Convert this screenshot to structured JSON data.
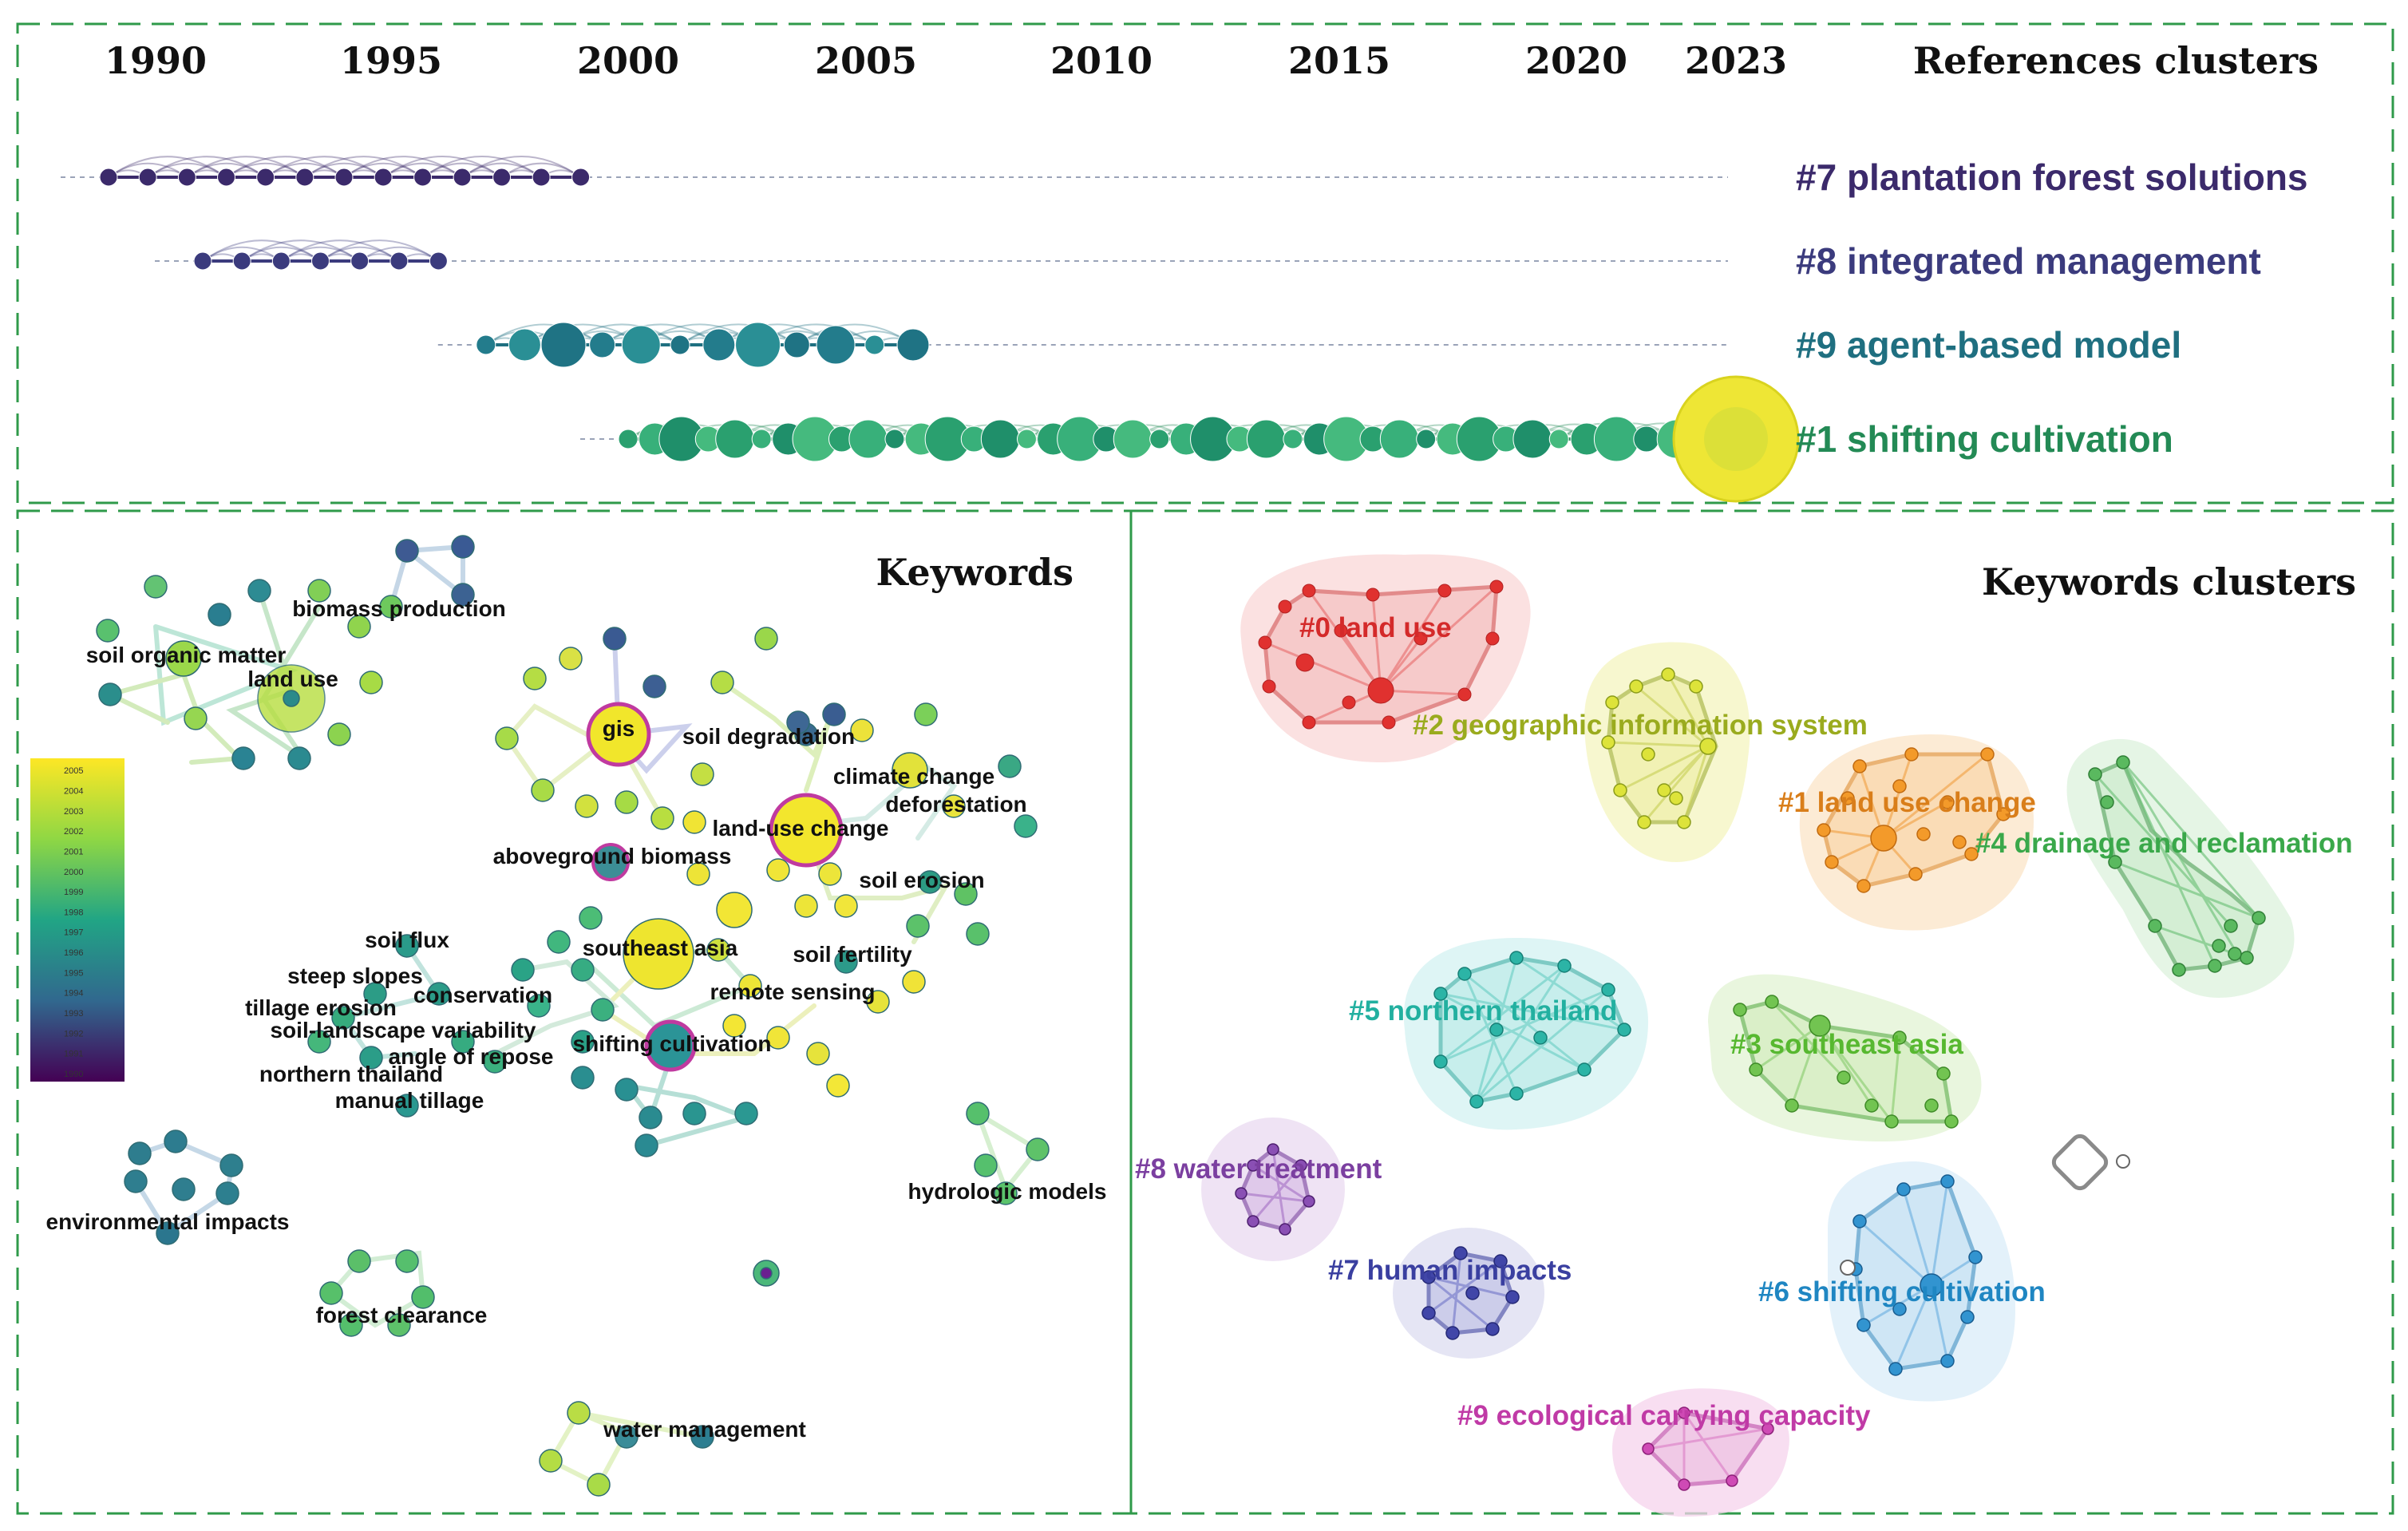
{
  "timeline": {
    "years": [
      "1990",
      "1995",
      "2000",
      "2005",
      "2010",
      "2015",
      "2020",
      "2023"
    ],
    "title": "References clusters",
    "clusters": [
      {
        "label": "#7 plantation forest solutions",
        "color": "#3b2a6b",
        "start": 1989.0,
        "end": 1999.0,
        "extent_end": 2023.0
      },
      {
        "label": "#8 integrated management",
        "color": "#3b3b7d",
        "start": 1991.0,
        "end": 1996.0,
        "extent_end": 2023.0
      },
      {
        "label": "#9 agent-based model",
        "color": "#1f6f80",
        "start": 1997.0,
        "end": 2006.0,
        "extent_end": 2023.0
      },
      {
        "label": "#1 shifting cultivation",
        "color": "#238a55",
        "start": 2000.0,
        "end": 2023.0,
        "extent_end": 2023.0
      }
    ]
  },
  "keywords_panel": {
    "title": "Keywords",
    "labels": [
      "biomass production",
      "soil organic matter",
      "land use",
      "gis",
      "soil degradation",
      "climate change",
      "deforestation",
      "land-use change",
      "aboveground biomass",
      "soil erosion",
      "soil flux",
      "southeast asia",
      "soil fertility",
      "steep slopes",
      "conservation",
      "tillage erosion",
      "remote sensing",
      "soil-landscape variability",
      "angle of repose",
      "shifting cultivation",
      "northern thailand",
      "manual tillage",
      "hydrologic models",
      "environmental impacts",
      "forest clearance",
      "water management"
    ],
    "legend_years": [
      "2005",
      "2004",
      "2003",
      "2002",
      "2001",
      "2000",
      "1999",
      "1998",
      "1997",
      "1996",
      "1995",
      "1994",
      "1993",
      "1992",
      "1991",
      "1990"
    ],
    "legend_colors": [
      "#fde725",
      "#d8e219",
      "#b0dd2f",
      "#89d548",
      "#65cb5e",
      "#46c06f",
      "#2eb37c",
      "#21a585",
      "#1f958b",
      "#23888e",
      "#297b8e",
      "#2e6d8e",
      "#355e8d",
      "#3d4e8a",
      "#433e85",
      "#482576"
    ]
  },
  "clusters_panel": {
    "title": "Keywords clusters",
    "clusters": [
      {
        "label": "#0 land use",
        "color": "#d42a2a"
      },
      {
        "label": "#2 geographic information system",
        "color": "#9aab1e"
      },
      {
        "label": "#1 land use change",
        "color": "#d97e1a"
      },
      {
        "label": "#4 drainage and reclamation",
        "color": "#3aa84a"
      },
      {
        "label": "#5 northern thailand",
        "color": "#22b0a0"
      },
      {
        "label": "#3 southeast asia",
        "color": "#57b830"
      },
      {
        "label": "#8 water treatment",
        "color": "#7b3fa0"
      },
      {
        "label": "#7 human impacts",
        "color": "#3a3fa0"
      },
      {
        "label": "#6 shifting cultivation",
        "color": "#1f86c2"
      },
      {
        "label": "#9 ecological carrying capacity",
        "color": "#c03aa6"
      }
    ]
  }
}
